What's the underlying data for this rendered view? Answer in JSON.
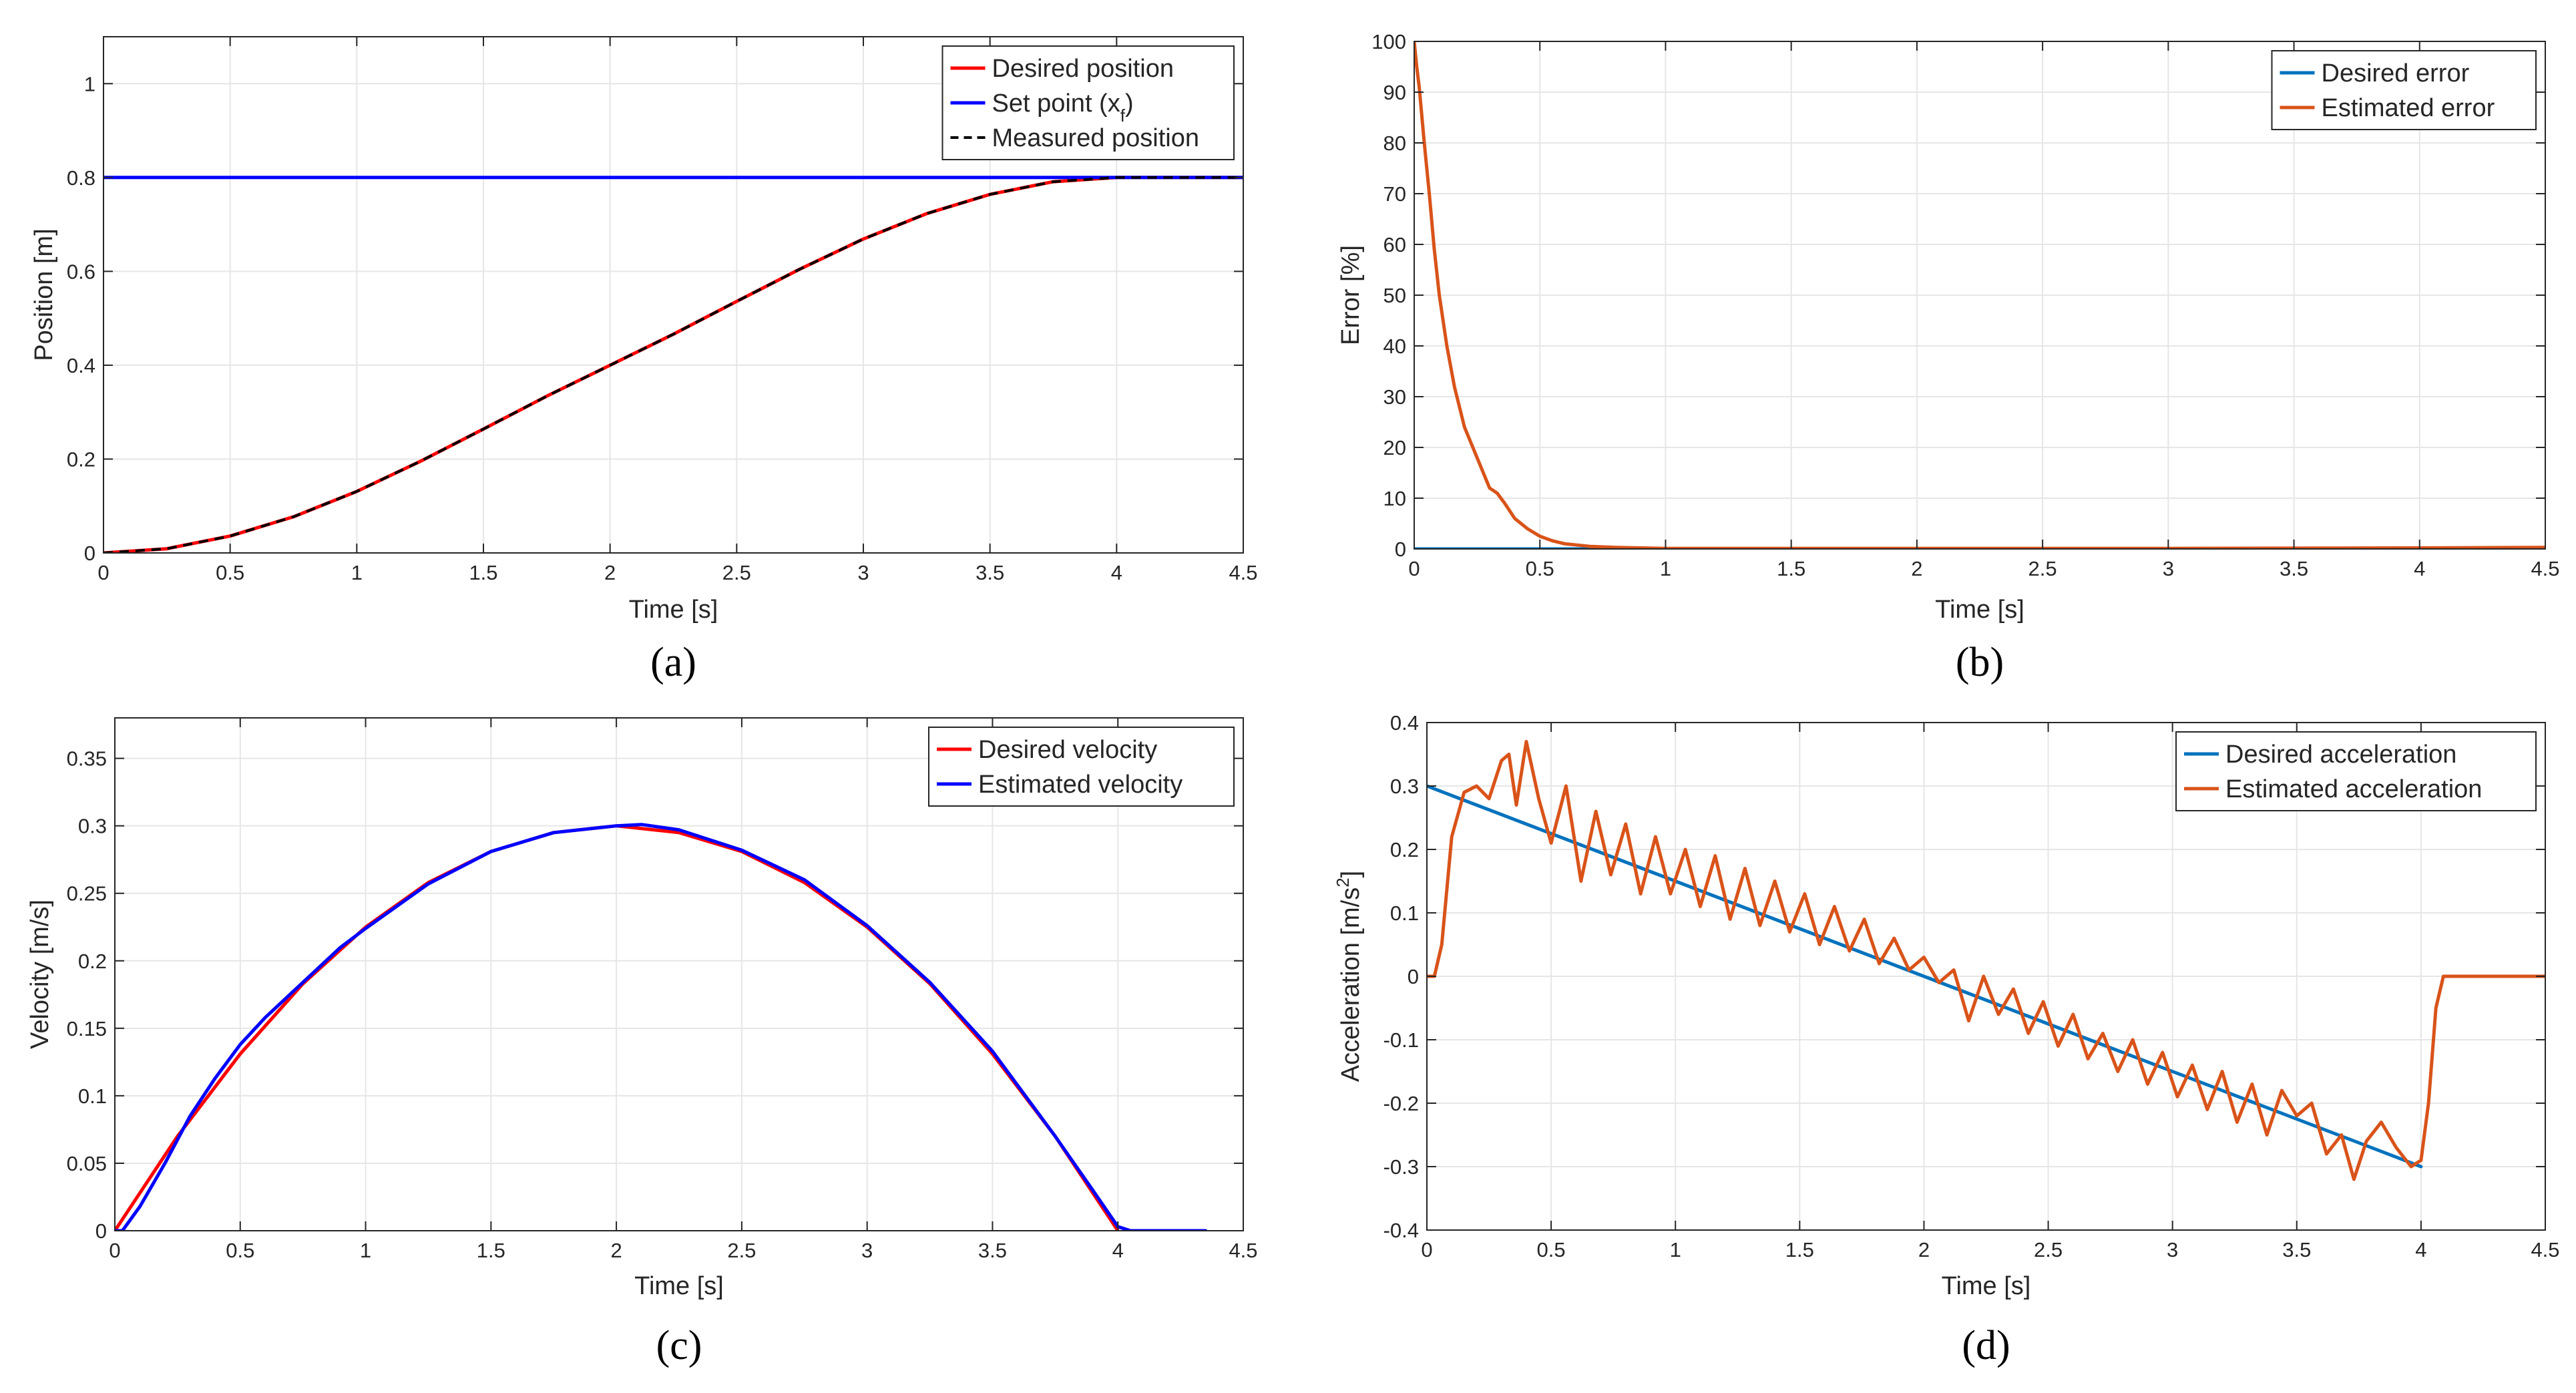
{
  "chart_data": [
    {
      "id": "a",
      "type": "line",
      "panel_label": "(a)",
      "xlabel": "Time [s]",
      "ylabel": "Position [m]",
      "xlim": [
        0,
        4.5
      ],
      "ylim": [
        0,
        1.1
      ],
      "xticks": [
        0,
        0.5,
        1,
        1.5,
        2,
        2.5,
        3,
        3.5,
        4,
        4.5
      ],
      "xtick_labels": [
        "0",
        "0.5",
        "1",
        "1.5",
        "2",
        "2.5",
        "3",
        "3.5",
        "4",
        "4.5"
      ],
      "yticks": [
        0,
        0.2,
        0.4,
        0.6,
        0.8,
        1
      ],
      "ytick_labels": [
        "0",
        "0.2",
        "0.4",
        "0.6",
        "0.8",
        "1"
      ],
      "grid": true,
      "legend_position": "top-right",
      "series": [
        {
          "name": "Desired position",
          "color": "#ff0000",
          "dash": "solid",
          "x": [
            0,
            0.25,
            0.5,
            0.75,
            1,
            1.25,
            1.5,
            1.75,
            2,
            2.25,
            2.5,
            2.75,
            3,
            3.25,
            3.5,
            3.75,
            4,
            4.5
          ],
          "y": [
            0,
            0.009,
            0.036,
            0.077,
            0.131,
            0.195,
            0.264,
            0.334,
            0.4,
            0.466,
            0.536,
            0.605,
            0.669,
            0.723,
            0.764,
            0.791,
            0.8,
            0.8
          ]
        },
        {
          "name": "Set point (x",
          "name_subscript": "f",
          "name_suffix": ")",
          "color": "#0000ff",
          "dash": "solid",
          "x": [
            0,
            4.5
          ],
          "y": [
            0.8,
            0.8
          ]
        },
        {
          "name": "Measured position",
          "color": "#000000",
          "dash": "dashed",
          "x": [
            0,
            0.25,
            0.5,
            0.75,
            1,
            1.25,
            1.5,
            1.75,
            2,
            2.25,
            2.5,
            2.75,
            3,
            3.25,
            3.5,
            3.75,
            4,
            4.5
          ],
          "y": [
            0,
            0.009,
            0.036,
            0.077,
            0.131,
            0.195,
            0.264,
            0.334,
            0.4,
            0.466,
            0.536,
            0.605,
            0.669,
            0.723,
            0.764,
            0.791,
            0.8,
            0.8
          ]
        }
      ]
    },
    {
      "id": "b",
      "type": "line",
      "panel_label": "(b)",
      "xlabel": "Time [s]",
      "ylabel": "Error [%]",
      "xlim": [
        0,
        4.5
      ],
      "ylim": [
        0,
        100
      ],
      "xticks": [
        0,
        0.5,
        1,
        1.5,
        2,
        2.5,
        3,
        3.5,
        4,
        4.5
      ],
      "xtick_labels": [
        "0",
        "0.5",
        "1",
        "1.5",
        "2",
        "2.5",
        "3",
        "3.5",
        "4",
        "4.5"
      ],
      "yticks": [
        0,
        10,
        20,
        30,
        40,
        50,
        60,
        70,
        80,
        90,
        100
      ],
      "ytick_labels": [
        "0",
        "10",
        "20",
        "30",
        "40",
        "50",
        "60",
        "70",
        "80",
        "90",
        "100"
      ],
      "grid": true,
      "legend_position": "top-right",
      "series": [
        {
          "name": "Desired error",
          "color": "#0072bd",
          "dash": "solid",
          "x": [
            0,
            1
          ],
          "y": [
            0,
            0
          ]
        },
        {
          "name": "Estimated error",
          "color": "#d95319",
          "dash": "solid",
          "x": [
            0,
            0.01,
            0.02,
            0.04,
            0.06,
            0.08,
            0.1,
            0.13,
            0.16,
            0.2,
            0.25,
            0.3,
            0.33,
            0.36,
            0.4,
            0.45,
            0.5,
            0.55,
            0.6,
            0.7,
            0.8,
            0.9,
            1.0,
            1.5,
            2,
            3,
            4,
            4.5
          ],
          "y": [
            100,
            95,
            91,
            80,
            70,
            59,
            50,
            40,
            32,
            24,
            18,
            12,
            11,
            9,
            6,
            4,
            2.5,
            1.6,
            1,
            0.5,
            0.3,
            0.2,
            0.1,
            0.1,
            0.1,
            0.1,
            0.2,
            0.3
          ]
        }
      ]
    },
    {
      "id": "c",
      "type": "line",
      "panel_label": "(c)",
      "xlabel": "Time [s]",
      "ylabel": "Velocity [m/s]",
      "xlim": [
        0,
        4.5
      ],
      "ylim": [
        0,
        0.38
      ],
      "xticks": [
        0,
        0.5,
        1,
        1.5,
        2,
        2.5,
        3,
        3.5,
        4,
        4.5
      ],
      "xtick_labels": [
        "0",
        "0.5",
        "1",
        "1.5",
        "2",
        "2.5",
        "3",
        "3.5",
        "4",
        "4.5"
      ],
      "yticks": [
        0,
        0.05,
        0.1,
        0.15,
        0.2,
        0.25,
        0.3,
        0.35
      ],
      "ytick_labels": [
        "0",
        "0.05",
        "0.1",
        "0.15",
        "0.2",
        "0.25",
        "0.3",
        "0.35"
      ],
      "grid": true,
      "legend_position": "top-right",
      "series": [
        {
          "name": "Desired velocity",
          "color": "#ff0000",
          "dash": "solid",
          "x": [
            0,
            0.25,
            0.5,
            0.75,
            1,
            1.25,
            1.5,
            1.75,
            2,
            2.25,
            2.5,
            2.75,
            3,
            3.25,
            3.5,
            3.75,
            4
          ],
          "y": [
            0,
            0.07,
            0.131,
            0.183,
            0.225,
            0.258,
            0.281,
            0.295,
            0.3,
            0.295,
            0.281,
            0.258,
            0.225,
            0.183,
            0.131,
            0.07,
            0
          ]
        },
        {
          "name": "Estimated velocity",
          "color": "#0000ff",
          "dash": "solid",
          "x": [
            0,
            0.03,
            0.1,
            0.2,
            0.3,
            0.4,
            0.5,
            0.6,
            0.75,
            0.9,
            1,
            1.25,
            1.5,
            1.75,
            2,
            2.1,
            2.25,
            2.5,
            2.75,
            3,
            3.25,
            3.5,
            3.75,
            3.9,
            4.0,
            4.05,
            4.35
          ],
          "y": [
            0,
            0,
            0.018,
            0.05,
            0.085,
            0.113,
            0.138,
            0.158,
            0.184,
            0.21,
            0.224,
            0.257,
            0.281,
            0.295,
            0.3,
            0.301,
            0.297,
            0.282,
            0.26,
            0.226,
            0.184,
            0.133,
            0.07,
            0.03,
            0.003,
            0,
            0
          ]
        }
      ]
    },
    {
      "id": "d",
      "type": "line",
      "panel_label": "(d)",
      "xlabel": "Time [s]",
      "ylabel": "Acceleration [m/s",
      "ylabel_superscript": "2",
      "ylabel_suffix": "]",
      "xlim": [
        0,
        4.5
      ],
      "ylim": [
        -0.4,
        0.4
      ],
      "xticks": [
        0,
        0.5,
        1,
        1.5,
        2,
        2.5,
        3,
        3.5,
        4,
        4.5
      ],
      "xtick_labels": [
        "0",
        "0.5",
        "1",
        "1.5",
        "2",
        "2.5",
        "3",
        "3.5",
        "4",
        "4.5"
      ],
      "yticks": [
        -0.4,
        -0.3,
        -0.2,
        -0.1,
        0,
        0.1,
        0.2,
        0.3,
        0.4
      ],
      "ytick_labels": [
        "-0.4",
        "-0.3",
        "-0.2",
        "-0.1",
        "0",
        "0.1",
        "0.2",
        "0.3",
        "0.4"
      ],
      "grid": true,
      "legend_position": "top-right",
      "series": [
        {
          "name": "Desired acceleration",
          "color": "#0072bd",
          "dash": "solid",
          "x": [
            0,
            4
          ],
          "y": [
            0.3,
            -0.3
          ]
        },
        {
          "name": "Estimated acceleration",
          "color": "#d95319",
          "dash": "solid",
          "x": [
            0,
            0.03,
            0.06,
            0.1,
            0.15,
            0.2,
            0.25,
            0.3,
            0.33,
            0.36,
            0.4,
            0.45,
            0.5,
            0.56,
            0.62,
            0.68,
            0.74,
            0.8,
            0.86,
            0.92,
            0.98,
            1.04,
            1.1,
            1.16,
            1.22,
            1.28,
            1.34,
            1.4,
            1.46,
            1.52,
            1.58,
            1.64,
            1.7,
            1.76,
            1.82,
            1.88,
            1.94,
            2.0,
            2.06,
            2.12,
            2.18,
            2.24,
            2.3,
            2.36,
            2.42,
            2.48,
            2.54,
            2.6,
            2.66,
            2.72,
            2.78,
            2.84,
            2.9,
            2.96,
            3.02,
            3.08,
            3.14,
            3.2,
            3.26,
            3.32,
            3.38,
            3.44,
            3.5,
            3.56,
            3.62,
            3.68,
            3.73,
            3.78,
            3.84,
            3.9,
            3.96,
            4.0,
            4.03,
            4.06,
            4.09,
            4.15,
            4.3,
            4.5
          ],
          "y": [
            0,
            0,
            0.05,
            0.22,
            0.29,
            0.3,
            0.28,
            0.34,
            0.35,
            0.27,
            0.37,
            0.28,
            0.21,
            0.3,
            0.15,
            0.26,
            0.16,
            0.24,
            0.13,
            0.22,
            0.13,
            0.2,
            0.11,
            0.19,
            0.09,
            0.17,
            0.08,
            0.15,
            0.07,
            0.13,
            0.05,
            0.11,
            0.04,
            0.09,
            0.02,
            0.06,
            0.01,
            0.03,
            -0.01,
            0.01,
            -0.07,
            0.0,
            -0.06,
            -0.02,
            -0.09,
            -0.04,
            -0.11,
            -0.06,
            -0.13,
            -0.09,
            -0.15,
            -0.1,
            -0.17,
            -0.12,
            -0.19,
            -0.14,
            -0.21,
            -0.15,
            -0.23,
            -0.17,
            -0.25,
            -0.18,
            -0.22,
            -0.2,
            -0.28,
            -0.25,
            -0.32,
            -0.26,
            -0.23,
            -0.27,
            -0.3,
            -0.29,
            -0.2,
            -0.05,
            0,
            0,
            0,
            0
          ]
        }
      ]
    }
  ]
}
